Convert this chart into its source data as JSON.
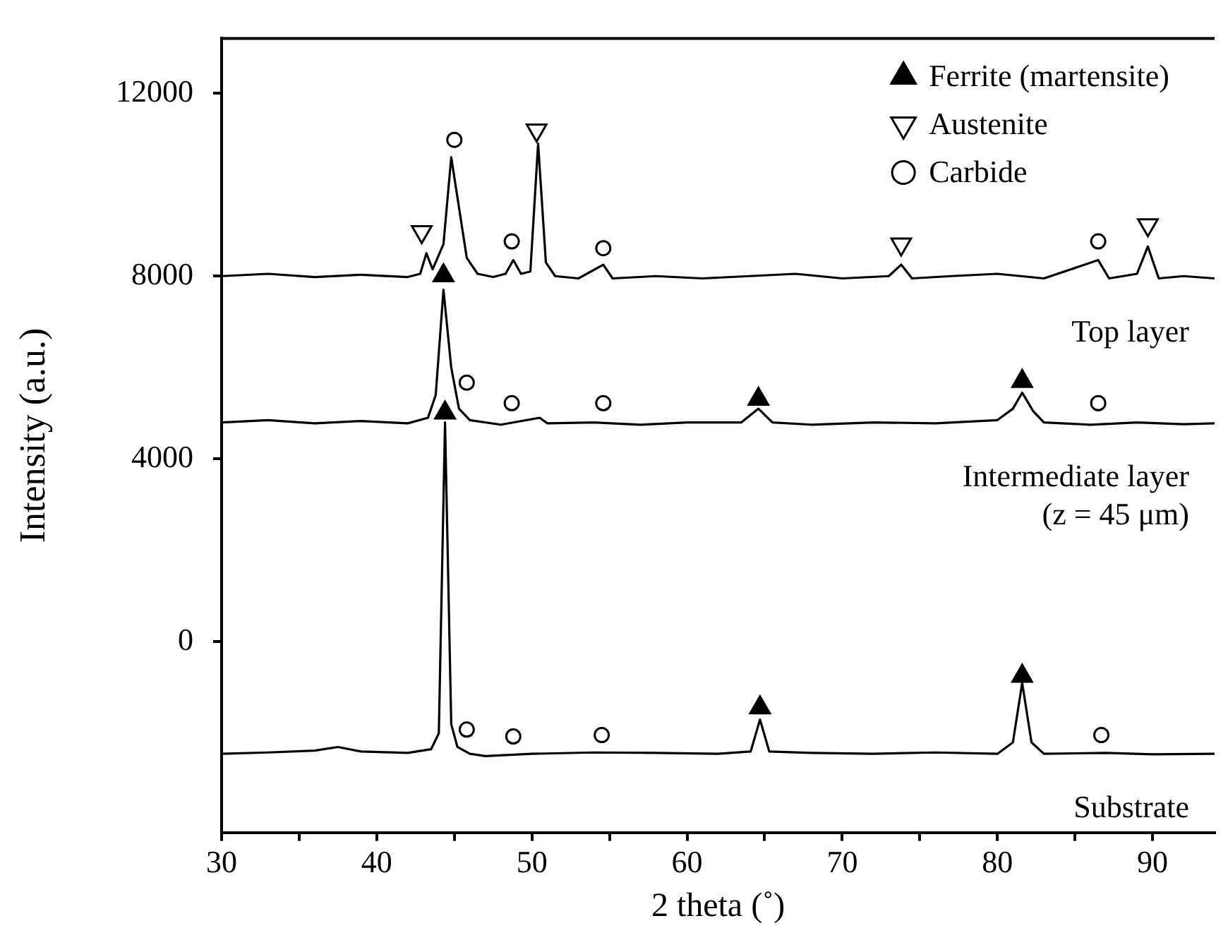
{
  "chart_data": {
    "type": "line",
    "xlabel": "2 theta (˚)",
    "ylabel": "Intensity (a.u.)",
    "xlim": [
      30,
      94
    ],
    "ylim": [
      -4170,
      13200
    ],
    "xticks": [
      30,
      {
        "value": 35,
        "label": null
      },
      40,
      {
        "value": 45,
        "label": null
      },
      50,
      {
        "value": 55,
        "label": null
      },
      60,
      {
        "value": 65,
        "label": null
      },
      70,
      {
        "value": 75,
        "label": null
      },
      80,
      {
        "value": 85,
        "label": null
      },
      90
    ],
    "yticks": [
      0,
      4000,
      8000,
      12000
    ],
    "grid": false,
    "legend": "top right",
    "line_style": "solid",
    "series": [
      {
        "name": "Top layer",
        "color": "#000000",
        "x": [
          30,
          33,
          36,
          39,
          42,
          42.8,
          43.2,
          43.6,
          44.3,
          44.8,
          45.3,
          45.8,
          46.5,
          47.5,
          48.3,
          48.8,
          49.3,
          49.9,
          50.4,
          50.9,
          51.5,
          53,
          54.6,
          55.2,
          58,
          61,
          64,
          67,
          70,
          73,
          73.8,
          74.5,
          77,
          80,
          83,
          86.5,
          87.2,
          89,
          89.7,
          90.4,
          92,
          94
        ],
        "values": [
          8000,
          8050,
          7980,
          8030,
          7980,
          8050,
          8500,
          8150,
          8700,
          10600,
          9500,
          8400,
          8050,
          7980,
          8050,
          8350,
          8050,
          8100,
          10900,
          8300,
          8000,
          7950,
          8250,
          7950,
          8000,
          7950,
          8000,
          8050,
          7950,
          8000,
          8250,
          7950,
          8000,
          8050,
          7950,
          8350,
          7950,
          8050,
          8650,
          7950,
          8000,
          7950
        ]
      },
      {
        "name": "Intermediate layer (z = 45 μm)",
        "color": "#000000",
        "x": [
          30,
          33,
          36,
          39,
          42,
          43.3,
          43.8,
          44.3,
          44.8,
          45.3,
          46,
          48,
          50.5,
          51,
          54,
          57,
          60,
          63.5,
          64.6,
          65.5,
          68,
          72,
          76,
          80,
          81,
          81.6,
          82.3,
          83,
          86,
          89,
          92,
          94
        ],
        "values": [
          4800,
          4850,
          4780,
          4830,
          4780,
          4900,
          5400,
          7700,
          6000,
          5100,
          4850,
          4750,
          4900,
          4780,
          4800,
          4750,
          4800,
          4800,
          5100,
          4800,
          4750,
          4800,
          4780,
          4850,
          5100,
          5450,
          5050,
          4800,
          4750,
          4800,
          4760,
          4780
        ]
      },
      {
        "name": "Substrate",
        "color": "#000000",
        "x": [
          30,
          33,
          36,
          37.5,
          39,
          42,
          43.5,
          44,
          44.4,
          44.8,
          45.2,
          46,
          47,
          50,
          54,
          58,
          62,
          64.1,
          64.7,
          65.3,
          68,
          72,
          76,
          80,
          81,
          81.6,
          82.2,
          83,
          87,
          90,
          94
        ],
        "values": [
          -2450,
          -2420,
          -2380,
          -2300,
          -2400,
          -2430,
          -2350,
          -2000,
          4800,
          -1800,
          -2300,
          -2450,
          -2500,
          -2450,
          -2420,
          -2430,
          -2450,
          -2400,
          -1700,
          -2400,
          -2430,
          -2450,
          -2420,
          -2450,
          -2200,
          -900,
          -2200,
          -2450,
          -2430,
          -2460,
          -2450
        ]
      },
      {
        "name": "Ferrite (martensite)",
        "type": "scatter",
        "marker": "triangle",
        "color": "#000000",
        "x": [
          44.3,
          64.6,
          81.6,
          44.4,
          64.7,
          81.6
        ],
        "values": [
          8010,
          5310,
          5700,
          5010,
          -1440,
          -750
        ]
      },
      {
        "name": "Austenite",
        "type": "scatter",
        "marker": "triangle-down",
        "color": "#000000",
        "x": [
          42.9,
          50.3,
          73.8,
          89.7
        ],
        "values": [
          8970,
          11190,
          8700,
          9120
        ]
      },
      {
        "name": "Carbide",
        "type": "scatter",
        "marker": "circle",
        "color": "#000000",
        "x": [
          45.0,
          48.7,
          54.6,
          86.5,
          45.8,
          48.7,
          54.6,
          86.5,
          45.8,
          48.8,
          54.5,
          86.7
        ],
        "values": [
          10980,
          8760,
          8610,
          8760,
          5670,
          5220,
          5220,
          5220,
          -1920,
          -2070,
          -2040,
          -2040
        ]
      }
    ]
  }
}
